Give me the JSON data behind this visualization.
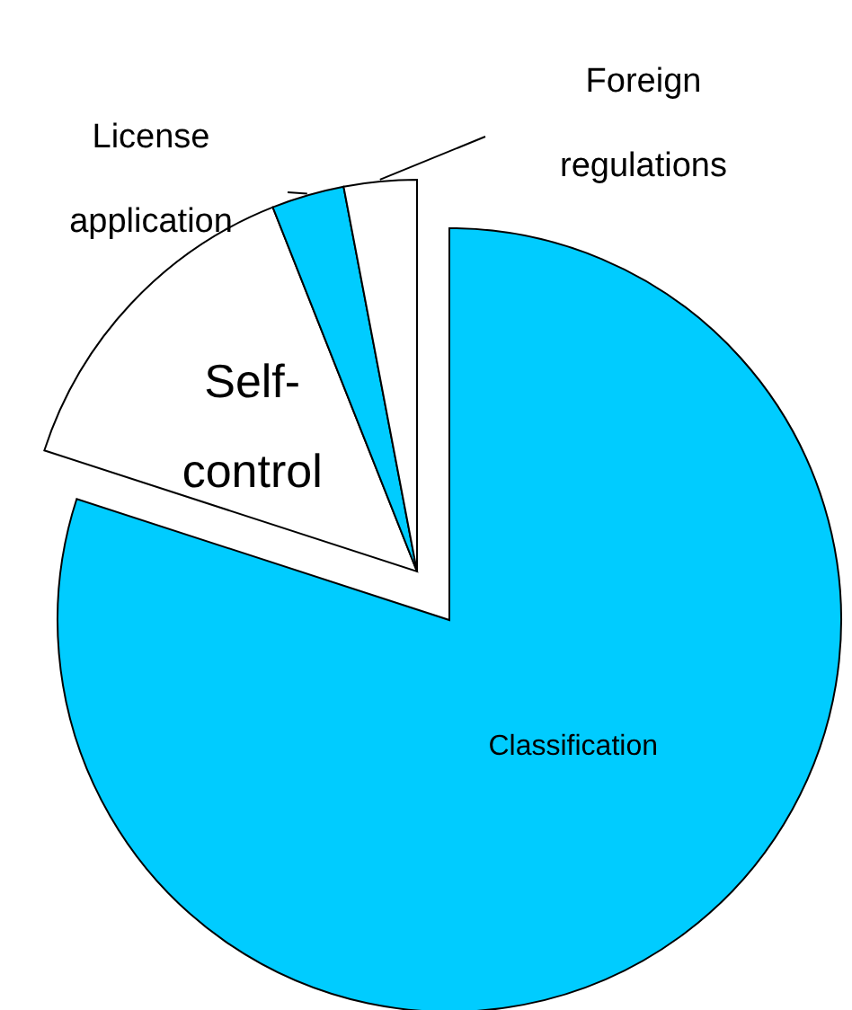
{
  "chart_data": {
    "type": "pie",
    "categories": [
      "Classification",
      "Self-control",
      "License application",
      "Foreign regulations"
    ],
    "values": [
      80,
      14,
      3,
      3
    ],
    "colors": [
      "#00ccff",
      "#ffffff",
      "#00ccff",
      "#ffffff"
    ]
  }
}
